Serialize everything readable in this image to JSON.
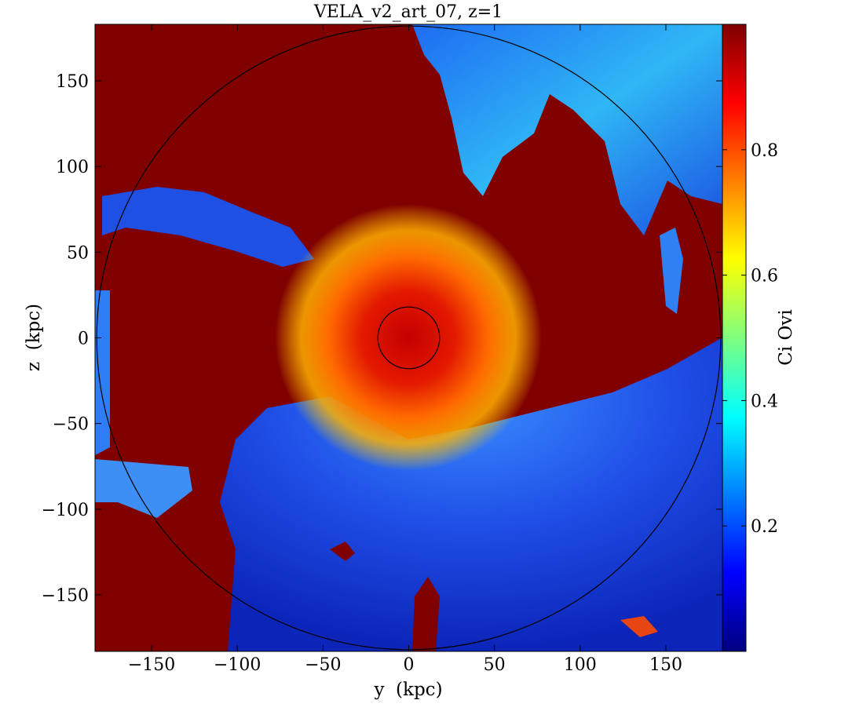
{
  "chart_data": {
    "type": "heatmap",
    "title": "VELA_v2_art_07, z=1",
    "xlabel": "y  (kpc)",
    "ylabel": "z  (kpc)",
    "xlim": [
      -183,
      183
    ],
    "ylim": [
      -183,
      183
    ],
    "x_ticks": [
      {
        "value": -150,
        "label": "−150"
      },
      {
        "value": -100,
        "label": "−100"
      },
      {
        "value": -50,
        "label": "−50"
      },
      {
        "value": 0,
        "label": "0"
      },
      {
        "value": 50,
        "label": "50"
      },
      {
        "value": 100,
        "label": "100"
      },
      {
        "value": 150,
        "label": "150"
      }
    ],
    "y_ticks": [
      {
        "value": 150,
        "label": "150"
      },
      {
        "value": 100,
        "label": "100"
      },
      {
        "value": 50,
        "label": "50"
      },
      {
        "value": 0,
        "label": "0"
      },
      {
        "value": -50,
        "label": "−50"
      },
      {
        "value": -100,
        "label": "−100"
      },
      {
        "value": -150,
        "label": "−150"
      }
    ],
    "colorbar": {
      "label": "Ci Ovi",
      "range": [
        0,
        1
      ],
      "colormap": "jet",
      "ticks": [
        {
          "value": 0.2,
          "label": "0.2"
        },
        {
          "value": 0.4,
          "label": "0.4"
        },
        {
          "value": 0.6,
          "label": "0.6"
        },
        {
          "value": 0.8,
          "label": "0.8"
        }
      ],
      "colors": [
        "#00007f",
        "#0000ff",
        "#007fff",
        "#00ffff",
        "#7fff7f",
        "#ffff00",
        "#ff7f00",
        "#ff0000",
        "#7f0000"
      ]
    },
    "circles": [
      {
        "name": "outer",
        "radius": 182
      },
      {
        "name": "inner",
        "radius": 18
      }
    ],
    "background_color": "#800000",
    "regions": [
      {
        "name": "blue-southern-region",
        "color": "#1a3fd9"
      },
      {
        "name": "blue-northeast-region",
        "color": "#2a6ff0"
      },
      {
        "name": "turbulent-disc",
        "color": "#ff5a00"
      },
      {
        "name": "left-strip",
        "color": "#2f7df5"
      }
    ]
  }
}
